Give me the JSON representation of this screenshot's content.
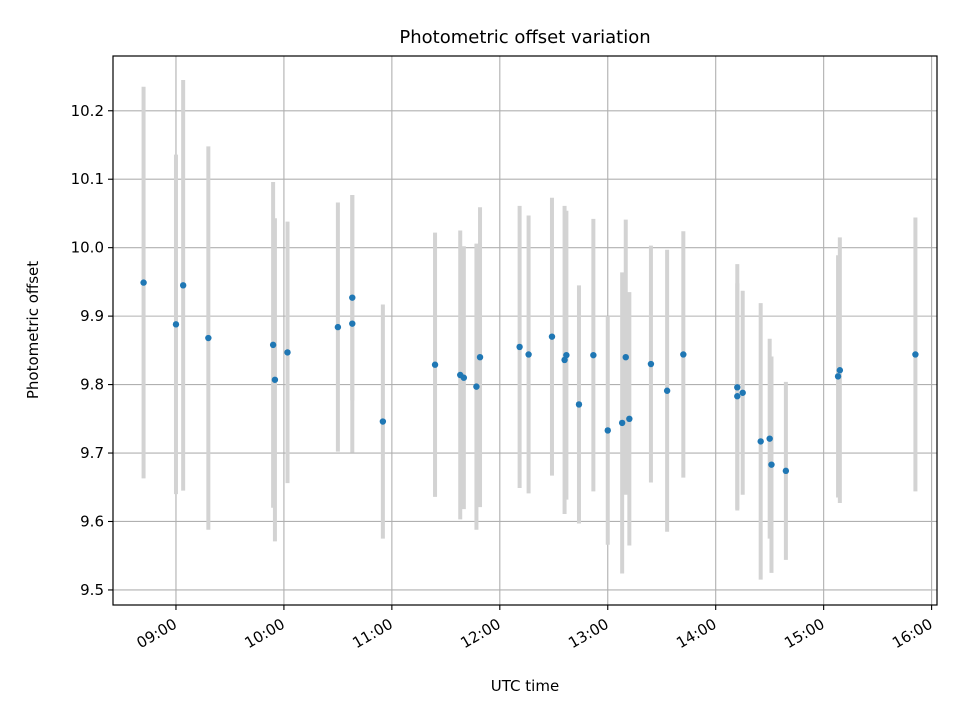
{
  "chart_data": {
    "type": "scatter",
    "title": "Photometric offset variation",
    "xlabel": "UTC time",
    "ylabel": "Photometric offset",
    "x_tick_labels": [
      "09:00",
      "10:00",
      "11:00",
      "12:00",
      "13:00",
      "14:00",
      "15:00",
      "16:00"
    ],
    "y_tick_labels": [
      "9.5",
      "9.6",
      "9.7",
      "9.8",
      "9.9",
      "10.0",
      "10.1",
      "10.2"
    ],
    "y_ticks": [
      9.5,
      9.6,
      9.7,
      9.8,
      9.9,
      10.0,
      10.1,
      10.2
    ],
    "xlim": [
      "08:25",
      "16:03"
    ],
    "ylim": [
      9.478,
      10.28
    ],
    "grid": true,
    "point_color": "#1f77b4",
    "errorbar_color": "#d3d3d3",
    "points": [
      {
        "x": "08:42",
        "y": 9.949,
        "err": 0.286
      },
      {
        "x": "09:00",
        "y": 9.888,
        "err": 0.248
      },
      {
        "x": "09:04",
        "y": 9.945,
        "err": 0.3
      },
      {
        "x": "09:18",
        "y": 9.868,
        "err": 0.28
      },
      {
        "x": "09:54",
        "y": 9.858,
        "err": 0.238
      },
      {
        "x": "09:55",
        "y": 9.807,
        "err": 0.236
      },
      {
        "x": "10:02",
        "y": 9.847,
        "err": 0.191
      },
      {
        "x": "10:30",
        "y": 9.884,
        "err": 0.182
      },
      {
        "x": "10:38",
        "y": 9.927,
        "err": 0.15
      },
      {
        "x": "10:38",
        "y": 9.889,
        "err": 0.188
      },
      {
        "x": "10:55",
        "y": 9.746,
        "err": 0.171
      },
      {
        "x": "11:24",
        "y": 9.829,
        "err": 0.193
      },
      {
        "x": "11:38",
        "y": 9.814,
        "err": 0.211
      },
      {
        "x": "11:40",
        "y": 9.81,
        "err": 0.192
      },
      {
        "x": "11:47",
        "y": 9.797,
        "err": 0.209
      },
      {
        "x": "11:49",
        "y": 9.84,
        "err": 0.219
      },
      {
        "x": "12:11",
        "y": 9.855,
        "err": 0.206
      },
      {
        "x": "12:16",
        "y": 9.844,
        "err": 0.203
      },
      {
        "x": "12:29",
        "y": 9.87,
        "err": 0.203
      },
      {
        "x": "12:36",
        "y": 9.836,
        "err": 0.225
      },
      {
        "x": "12:37",
        "y": 9.843,
        "err": 0.211
      },
      {
        "x": "12:44",
        "y": 9.771,
        "err": 0.174
      },
      {
        "x": "12:52",
        "y": 9.843,
        "err": 0.199
      },
      {
        "x": "13:00",
        "y": 9.733,
        "err": 0.167
      },
      {
        "x": "13:08",
        "y": 9.744,
        "err": 0.22
      },
      {
        "x": "13:10",
        "y": 9.84,
        "err": 0.201
      },
      {
        "x": "13:12",
        "y": 9.75,
        "err": 0.185
      },
      {
        "x": "13:24",
        "y": 9.83,
        "err": 0.173
      },
      {
        "x": "13:33",
        "y": 9.791,
        "err": 0.206
      },
      {
        "x": "13:42",
        "y": 9.844,
        "err": 0.18
      },
      {
        "x": "14:12",
        "y": 9.796,
        "err": 0.18
      },
      {
        "x": "14:12",
        "y": 9.783,
        "err": 0.165
      },
      {
        "x": "14:15",
        "y": 9.788,
        "err": 0.149
      },
      {
        "x": "14:25",
        "y": 9.717,
        "err": 0.202
      },
      {
        "x": "14:30",
        "y": 9.721,
        "err": 0.146
      },
      {
        "x": "14:31",
        "y": 9.683,
        "err": 0.158
      },
      {
        "x": "14:39",
        "y": 9.674,
        "err": 0.13
      },
      {
        "x": "15:08",
        "y": 9.812,
        "err": 0.177
      },
      {
        "x": "15:09",
        "y": 9.821,
        "err": 0.194
      },
      {
        "x": "15:51",
        "y": 9.844,
        "err": 0.2
      }
    ]
  }
}
